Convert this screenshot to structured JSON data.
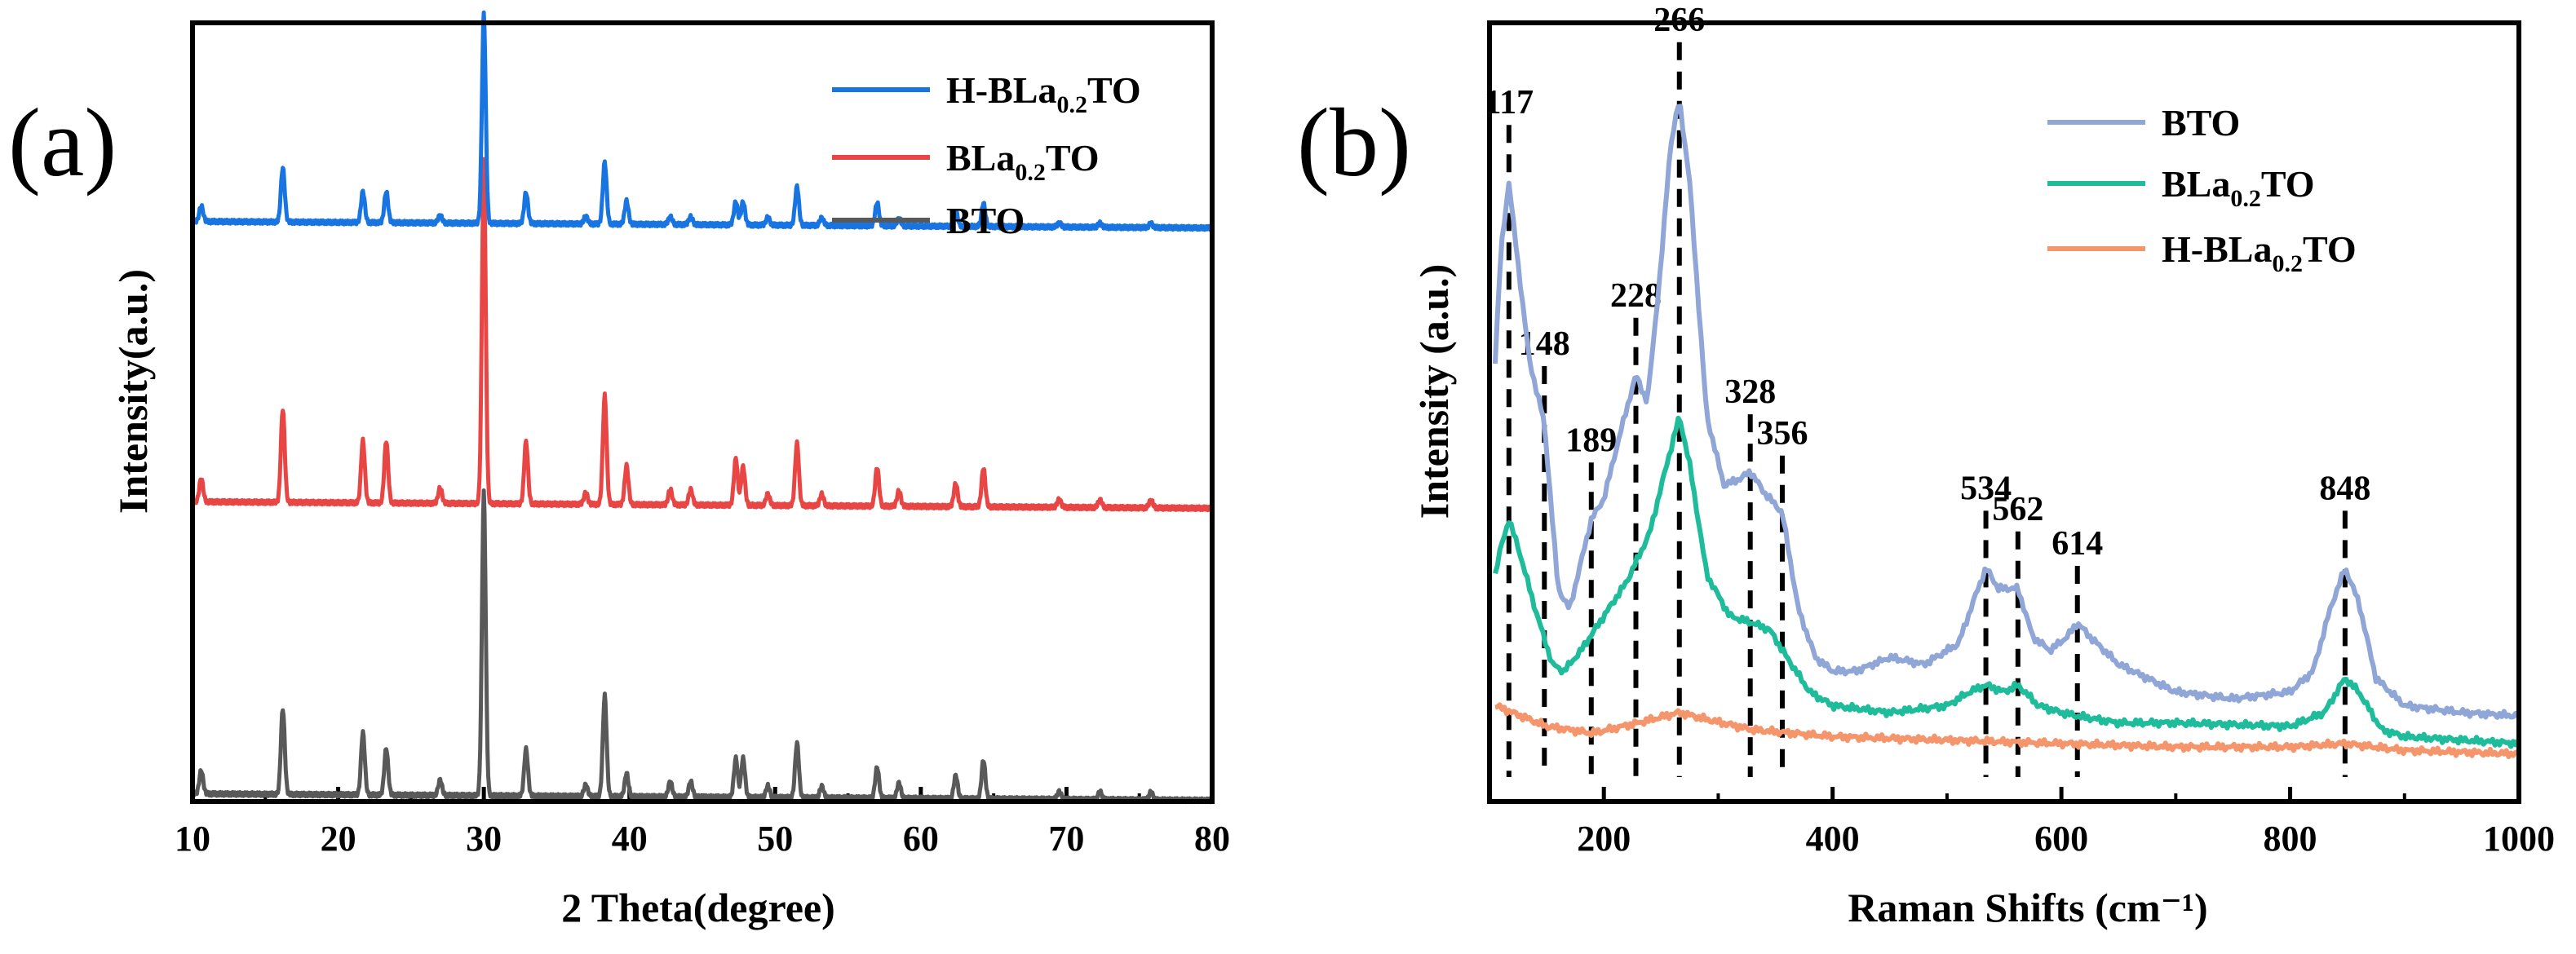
{
  "chart_data": [
    {
      "panel_label": "(a)",
      "type": "line",
      "xlabel": "2 Theta(degree)",
      "ylabel": "Intensity(a.u.)",
      "xlim": [
        10,
        80
      ],
      "xticks": [
        10,
        20,
        30,
        40,
        50,
        60,
        70,
        80
      ],
      "ylim": [
        0,
        100
      ],
      "peaks_2theta": [
        10.6,
        16.2,
        21.7,
        23.3,
        27.0,
        30.0,
        32.9,
        37.0,
        38.3,
        39.8,
        42.8,
        44.2,
        47.3,
        47.8,
        49.5,
        51.5,
        53.2,
        57.0,
        58.5,
        62.4,
        64.3,
        69.5,
        72.3,
        75.8
      ],
      "series": [
        {
          "name": "BTO",
          "legend_main": "BTO",
          "legend_sub": "",
          "legend_tail": "",
          "color": "#595959",
          "baseline": 1.0,
          "peak_heights": [
            3,
            11,
            8,
            6,
            2,
            39,
            6,
            1.5,
            13,
            3,
            2,
            2,
            5,
            5,
            1.5,
            7,
            1.5,
            4,
            2,
            3,
            5,
            1,
            1,
            1
          ]
        },
        {
          "name": "BLa0.2TO",
          "legend_main": "BLa",
          "legend_sub": "0.2",
          "legend_tail": "TO",
          "color": "#e84545",
          "baseline": 38.5,
          "peak_heights": [
            3,
            12,
            8,
            8,
            2,
            44,
            8,
            1.5,
            14,
            5,
            2,
            2,
            6,
            5,
            1.5,
            8,
            1.5,
            5,
            2,
            3,
            5,
            1,
            1,
            1
          ]
        },
        {
          "name": "H-BLa0.2TO",
          "legend_main": "H-BLa",
          "legend_sub": "0.2",
          "legend_tail": "TO",
          "color": "#1874e0",
          "baseline": 74.5,
          "peak_heights": [
            2,
            7,
            4,
            4,
            1,
            27,
            4,
            1,
            8,
            3,
            1,
            1,
            3,
            3,
            1,
            5,
            1,
            3,
            1,
            2,
            3,
            0.5,
            0.5,
            0.5
          ]
        }
      ]
    },
    {
      "panel_label": "(b)",
      "type": "line",
      "xlabel": "Raman Shifts (cm⁻¹)",
      "ylabel": "Intensity (a.u.)",
      "xlim": [
        100,
        1000
      ],
      "xticks": [
        200,
        400,
        600,
        800,
        1000
      ],
      "ylim": [
        0,
        100
      ],
      "peak_labels": [
        "117",
        "148",
        "189",
        "228",
        "266",
        "328",
        "356",
        "534",
        "562",
        "614",
        "848"
      ],
      "peak_positions": [
        117,
        148,
        189,
        228,
        266,
        328,
        356,
        534,
        562,
        614,
        848
      ],
      "series": [
        {
          "name": "BTO",
          "legend_main": "BTO",
          "legend_sub": "",
          "legend_tail": "",
          "color": "#8fa6d6",
          "points": [
            [
              105,
              58
            ],
            [
              110,
              74
            ],
            [
              117,
              84
            ],
            [
              125,
              72
            ],
            [
              135,
              58
            ],
            [
              148,
              49
            ],
            [
              160,
              25
            ],
            [
              170,
              22
            ],
            [
              189,
              35
            ],
            [
              200,
              38
            ],
            [
              215,
              48
            ],
            [
              228,
              56
            ],
            [
              238,
              52
            ],
            [
              250,
              72
            ],
            [
              258,
              89
            ],
            [
              266,
              96
            ],
            [
              275,
              84
            ],
            [
              290,
              50
            ],
            [
              305,
              40
            ],
            [
              320,
              41
            ],
            [
              328,
              42
            ],
            [
              340,
              39
            ],
            [
              356,
              36
            ],
            [
              370,
              22
            ],
            [
              385,
              15
            ],
            [
              400,
              13
            ],
            [
              420,
              13
            ],
            [
              450,
              15
            ],
            [
              480,
              14
            ],
            [
              510,
              17
            ],
            [
              525,
              24
            ],
            [
              534,
              28
            ],
            [
              545,
              25
            ],
            [
              562,
              25
            ],
            [
              575,
              18
            ],
            [
              590,
              16
            ],
            [
              605,
              18
            ],
            [
              614,
              20
            ],
            [
              625,
              18
            ],
            [
              650,
              14
            ],
            [
              700,
              10
            ],
            [
              750,
              9
            ],
            [
              800,
              10
            ],
            [
              820,
              13
            ],
            [
              835,
              22
            ],
            [
              848,
              28
            ],
            [
              860,
              23
            ],
            [
              875,
              12
            ],
            [
              900,
              8
            ],
            [
              950,
              7
            ],
            [
              1000,
              6.5
            ]
          ]
        },
        {
          "name": "BLa0.2TO",
          "legend_main": "BLa",
          "legend_sub": "0.2",
          "legend_tail": "TO",
          "color": "#1ebc9a",
          "points": [
            [
              105,
              27
            ],
            [
              110,
              31
            ],
            [
              117,
              35
            ],
            [
              125,
              31
            ],
            [
              140,
              22
            ],
            [
              155,
              14
            ],
            [
              165,
              13
            ],
            [
              180,
              16
            ],
            [
              200,
              21
            ],
            [
              220,
              26
            ],
            [
              240,
              33
            ],
            [
              255,
              43
            ],
            [
              266,
              50
            ],
            [
              275,
              43
            ],
            [
              290,
              27
            ],
            [
              310,
              21
            ],
            [
              330,
              20
            ],
            [
              345,
              19
            ],
            [
              360,
              15
            ],
            [
              380,
              10
            ],
            [
              400,
              8
            ],
            [
              450,
              7
            ],
            [
              500,
              8
            ],
            [
              520,
              10
            ],
            [
              534,
              11
            ],
            [
              550,
              10
            ],
            [
              562,
              11
            ],
            [
              580,
              8
            ],
            [
              600,
              7
            ],
            [
              614,
              6.5
            ],
            [
              650,
              5.5
            ],
            [
              700,
              5.5
            ],
            [
              800,
              5
            ],
            [
              830,
              7
            ],
            [
              848,
              12
            ],
            [
              860,
              10
            ],
            [
              880,
              4.5
            ],
            [
              900,
              3.5
            ],
            [
              1000,
              2.5
            ]
          ]
        },
        {
          "name": "H-BLa0.2TO",
          "legend_main": "H-BLa",
          "legend_sub": "0.2",
          "legend_tail": "TO",
          "color": "#f4956b",
          "points": [
            [
              105,
              8
            ],
            [
              120,
              7
            ],
            [
              150,
              5
            ],
            [
              190,
              4
            ],
            [
              230,
              5.5
            ],
            [
              266,
              7
            ],
            [
              290,
              6
            ],
            [
              330,
              4.5
            ],
            [
              400,
              3.5
            ],
            [
              500,
              3
            ],
            [
              600,
              2.5
            ],
            [
              700,
              2
            ],
            [
              800,
              2
            ],
            [
              848,
              2.5
            ],
            [
              900,
              1.5
            ],
            [
              1000,
              1
            ]
          ]
        }
      ]
    }
  ]
}
